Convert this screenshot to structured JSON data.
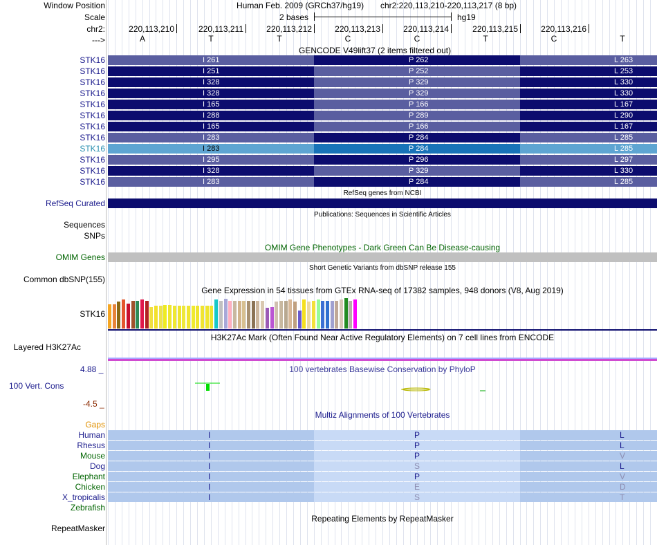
{
  "header": {
    "window_position_label": "Window Position",
    "scale_label": "Scale",
    "chr_label": "chr2:",
    "arrow_label": "--->",
    "assembly": "Human Feb. 2009 (GRCh37/hg19)",
    "position": "chr2:220,113,210-220,113,217 (8 bp)",
    "scale_text": "2 bases",
    "scale_db": "hg19",
    "coordinates": [
      "220,113,210",
      "220,113,211",
      "220,113,212",
      "220,113,213",
      "220,113,214",
      "220,113,215",
      "220,113,216"
    ],
    "bases": [
      "A",
      "T",
      "T",
      "C",
      "C",
      "T",
      "C",
      "T"
    ]
  },
  "gencode": {
    "title": "GENCODE V49lift37 (2 items filtered out)",
    "rows": [
      {
        "name": "STK16",
        "a1": "I 261",
        "a2": "P 262",
        "a3": "L 263",
        "c1": "#5a5ea0",
        "c2": "#0c0c6e",
        "c3": "#5a5ea0",
        "highlight": false
      },
      {
        "name": "STK16",
        "a1": "I 251",
        "a2": "P 252",
        "a3": "L 253",
        "c1": "#0c0c6e",
        "c2": "#5a5ea0",
        "c3": "#0c0c6e",
        "highlight": false
      },
      {
        "name": "STK16",
        "a1": "I 328",
        "a2": "P 329",
        "a3": "L 330",
        "c1": "#0c0c6e",
        "c2": "#5a5ea0",
        "c3": "#0c0c6e",
        "highlight": false
      },
      {
        "name": "STK16",
        "a1": "I 328",
        "a2": "P 329",
        "a3": "L 330",
        "c1": "#0c0c6e",
        "c2": "#5a5ea0",
        "c3": "#0c0c6e",
        "highlight": false
      },
      {
        "name": "STK16",
        "a1": "I 165",
        "a2": "P 166",
        "a3": "L 167",
        "c1": "#0c0c6e",
        "c2": "#5a5ea0",
        "c3": "#0c0c6e",
        "highlight": false
      },
      {
        "name": "STK16",
        "a1": "I 288",
        "a2": "P 289",
        "a3": "L 290",
        "c1": "#0c0c6e",
        "c2": "#5a5ea0",
        "c3": "#0c0c6e",
        "highlight": false
      },
      {
        "name": "STK16",
        "a1": "I 165",
        "a2": "P 166",
        "a3": "L 167",
        "c1": "#0c0c6e",
        "c2": "#5a5ea0",
        "c3": "#0c0c6e",
        "highlight": false
      },
      {
        "name": "STK16",
        "a1": "I 283",
        "a2": "P 284",
        "a3": "L 285",
        "c1": "#5a5ea0",
        "c2": "#0c0c6e",
        "c3": "#5a5ea0",
        "highlight": false
      },
      {
        "name": "STK16",
        "a1": "I 283",
        "a2": "P 284",
        "a3": "L 285",
        "c1": "#5ea5d2",
        "c2": "#1873b8",
        "c3": "#5ea5d2",
        "highlight": true
      },
      {
        "name": "STK16",
        "a1": "I 295",
        "a2": "P 296",
        "a3": "L 297",
        "c1": "#5a5ea0",
        "c2": "#0c0c6e",
        "c3": "#5a5ea0",
        "highlight": false
      },
      {
        "name": "STK16",
        "a1": "I 328",
        "a2": "P 329",
        "a3": "L 330",
        "c1": "#0c0c6e",
        "c2": "#5a5ea0",
        "c3": "#0c0c6e",
        "highlight": false
      },
      {
        "name": "STK16",
        "a1": "I 283",
        "a2": "P 284",
        "a3": "L 285",
        "c1": "#5a5ea0",
        "c2": "#0c0c6e",
        "c3": "#5a5ea0",
        "highlight": false
      }
    ]
  },
  "refseq": {
    "title": "RefSeq genes from NCBI",
    "label": "RefSeq Curated",
    "color": "#0c0c6e"
  },
  "publications": {
    "title": "Publications: Sequences in Scientific Articles",
    "label_sequences": "Sequences",
    "label_snps": "SNPs"
  },
  "omim": {
    "title": "OMIM Gene Phenotypes - Dark Green Can Be Disease-causing",
    "label": "OMIM Genes",
    "color": "#006400",
    "bar_color": "#c0c0c0"
  },
  "dbsnp": {
    "title": "Short Genetic Variants from dbSNP release 155",
    "label": "Common dbSNP(155)"
  },
  "gtex": {
    "title": "Gene Expression in 54 tissues from GTEx RNA-seq of 17382 samples, 948 donors (V8, Aug 2019)",
    "label": "STK16",
    "bars": [
      {
        "c": "#f5a623",
        "v": 0.8
      },
      {
        "c": "#e8833a",
        "v": 0.8
      },
      {
        "c": "#8b6914",
        "v": 0.88
      },
      {
        "c": "#e4572e",
        "v": 0.95
      },
      {
        "c": "#c8102e",
        "v": 0.82
      },
      {
        "c": "#a0522d",
        "v": 0.92
      },
      {
        "c": "#2e8b57",
        "v": 0.92
      },
      {
        "c": "#e0184b",
        "v": 0.95
      },
      {
        "c": "#b22222",
        "v": 0.9
      },
      {
        "c": "#f1e040",
        "v": 0.7
      },
      {
        "c": "#f3e12c",
        "v": 0.75
      },
      {
        "c": "#eee34a",
        "v": 0.75
      },
      {
        "c": "#eeeb20",
        "v": 0.78
      },
      {
        "c": "#eee62e",
        "v": 0.78
      },
      {
        "c": "#efe830",
        "v": 0.75
      },
      {
        "c": "#eee42c",
        "v": 0.75
      },
      {
        "c": "#eee83a",
        "v": 0.75
      },
      {
        "c": "#f0e630",
        "v": 0.75
      },
      {
        "c": "#f0ea2e",
        "v": 0.75
      },
      {
        "c": "#efe52c",
        "v": 0.75
      },
      {
        "c": "#f0e430",
        "v": 0.75
      },
      {
        "c": "#eee52e",
        "v": 0.75
      },
      {
        "c": "#efe42e",
        "v": 0.75
      },
      {
        "c": "#18c8c8",
        "v": 0.95
      },
      {
        "c": "#c0c0c0",
        "v": 0.9
      },
      {
        "c": "#a8a8d8",
        "v": 0.98
      },
      {
        "c": "#ffb0c0",
        "v": 0.9
      },
      {
        "c": "#c8b8a0",
        "v": 0.9
      },
      {
        "c": "#d2b48c",
        "v": 0.9
      },
      {
        "c": "#d8c090",
        "v": 0.9
      },
      {
        "c": "#a89070",
        "v": 0.9
      },
      {
        "c": "#8b7355",
        "v": 0.9
      },
      {
        "c": "#cdb79e",
        "v": 0.9
      },
      {
        "c": "#d9c8b0",
        "v": 0.9
      },
      {
        "c": "#9b59b6",
        "v": 0.68
      },
      {
        "c": "#ba55d3",
        "v": 0.7
      },
      {
        "c": "#d0c0b0",
        "v": 0.88
      },
      {
        "c": "#c8b8a0",
        "v": 0.9
      },
      {
        "c": "#b8a890",
        "v": 0.9
      },
      {
        "c": "#d8b898",
        "v": 0.95
      },
      {
        "c": "#c0a080",
        "v": 0.88
      },
      {
        "c": "#6a5acd",
        "v": 0.6
      },
      {
        "c": "#f5e020",
        "v": 0.95
      },
      {
        "c": "#ecd9a0",
        "v": 0.88
      },
      {
        "c": "#f3e03a",
        "v": 0.9
      },
      {
        "c": "#98fb98",
        "v": 0.95
      },
      {
        "c": "#3b6fd4",
        "v": 0.9
      },
      {
        "c": "#3070d0",
        "v": 0.9
      },
      {
        "c": "#a0a0d0",
        "v": 0.9
      },
      {
        "c": "#c0a898",
        "v": 0.9
      },
      {
        "c": "#d8c8b8",
        "v": 0.95
      },
      {
        "c": "#228b22",
        "v": 1.0
      },
      {
        "c": "#b8b0a8",
        "v": 0.9
      },
      {
        "c": "#ff00ff",
        "v": 0.95
      }
    ]
  },
  "h3k27ac": {
    "title": "H3K27Ac Mark (Often Found Near Active Regulatory Elements) on 7 cell lines from ENCODE",
    "label": "Layered H3K27Ac"
  },
  "conservation": {
    "title": "100 vertebrates Basewise Conservation by PhyloP",
    "label": "100 Vert. Cons",
    "max": "4.88 _",
    "min": "-4.5 _",
    "label_color": "#1a1a8c",
    "max_color": "#1a1a8c",
    "min_color": "#8b2a00"
  },
  "multiz": {
    "title": "Multiz Alignments of 100 Vertebrates",
    "gaps_label": "Gaps",
    "gaps_color": "#e09000",
    "species": [
      {
        "name": "Human",
        "color": "#1a1a8c",
        "aa": [
          "I",
          "P",
          "L"
        ],
        "aacolor": [
          "#1a1a8c",
          "#1a1a8c",
          "#1a1a8c"
        ]
      },
      {
        "name": "Rhesus",
        "color": "#1a1a8c",
        "aa": [
          "I",
          "P",
          "L"
        ],
        "aacolor": [
          "#1a1a8c",
          "#1a1a8c",
          "#1a1a8c"
        ]
      },
      {
        "name": "Mouse",
        "color": "#006400",
        "aa": [
          "I",
          "P",
          "V"
        ],
        "aacolor": [
          "#1a1a8c",
          "#1a1a8c",
          "#8c8cb0"
        ]
      },
      {
        "name": "Dog",
        "color": "#1a1a8c",
        "aa": [
          "I",
          "S",
          "L"
        ],
        "aacolor": [
          "#1a1a8c",
          "#8c8cb0",
          "#1a1a8c"
        ]
      },
      {
        "name": "Elephant",
        "color": "#006400",
        "aa": [
          "I",
          "P",
          "V"
        ],
        "aacolor": [
          "#1a1a8c",
          "#1a1a8c",
          "#8c8cb0"
        ]
      },
      {
        "name": "Chicken",
        "color": "#006400",
        "aa": [
          "I",
          "E",
          "D"
        ],
        "aacolor": [
          "#1a1a8c",
          "#8c8cb0",
          "#8c8cb0"
        ]
      },
      {
        "name": "X_tropicalis",
        "color": "#1a1a8c",
        "aa": [
          "I",
          "S",
          "T"
        ],
        "aacolor": [
          "#1a1a8c",
          "#8c8cb0",
          "#8c8cb0"
        ]
      }
    ],
    "zebrafish_label": "Zebrafish",
    "zebrafish_color": "#006400"
  },
  "repeatmasker": {
    "title": "Repeating Elements by RepeatMasker",
    "label": "RepeatMasker"
  }
}
